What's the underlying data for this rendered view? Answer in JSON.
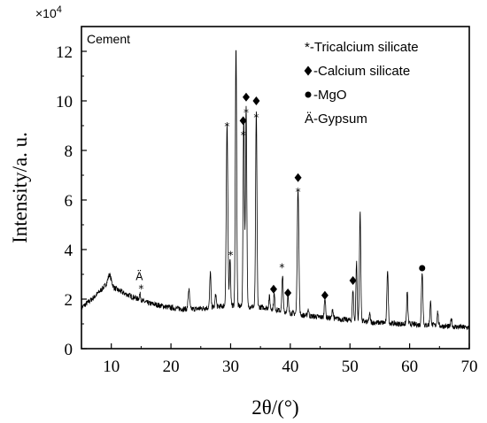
{
  "chart_data": {
    "type": "line",
    "title": "",
    "sample_label": "Cement",
    "xlabel": "2θ/(°)",
    "ylabel": "Intensity/a. u.",
    "y_multiplier": "×10",
    "y_multiplier_exp": "4",
    "xlim": [
      5,
      70
    ],
    "ylim": [
      0,
      13
    ],
    "x_ticks": [
      10,
      20,
      30,
      40,
      50,
      60,
      70
    ],
    "y_ticks": [
      0,
      2,
      4,
      6,
      8,
      10,
      12
    ],
    "grid": false,
    "legend_position": "top-right",
    "legend": [
      {
        "symbol": "star",
        "label": "*-Tricalcium silicate"
      },
      {
        "symbol": "diamond",
        "label": "-Calcium silicate"
      },
      {
        "symbol": "circle",
        "label": "-MgO"
      },
      {
        "symbol": "text",
        "label": "Ä-Gypsum"
      }
    ],
    "baseline": [
      [
        5,
        1.65
      ],
      [
        6,
        1.85
      ],
      [
        7,
        2.05
      ],
      [
        8,
        2.3
      ],
      [
        9,
        2.55
      ],
      [
        9.7,
        2.8
      ],
      [
        10.5,
        2.45
      ],
      [
        12,
        2.25
      ],
      [
        14,
        2.05
      ],
      [
        16,
        1.85
      ],
      [
        18,
        1.75
      ],
      [
        20,
        1.65
      ],
      [
        22,
        1.6
      ],
      [
        24,
        1.6
      ],
      [
        26,
        1.65
      ],
      [
        28,
        1.7
      ],
      [
        30,
        1.75
      ],
      [
        32,
        1.7
      ],
      [
        34,
        1.7
      ],
      [
        36,
        1.65
      ],
      [
        38,
        1.55
      ],
      [
        40,
        1.45
      ],
      [
        42,
        1.35
      ],
      [
        44,
        1.3
      ],
      [
        46,
        1.25
      ],
      [
        48,
        1.2
      ],
      [
        50,
        1.15
      ],
      [
        52,
        1.1
      ],
      [
        54,
        1.05
      ],
      [
        56,
        1.05
      ],
      [
        58,
        1.0
      ],
      [
        60,
        1.0
      ],
      [
        62,
        0.95
      ],
      [
        64,
        0.95
      ],
      [
        66,
        0.9
      ],
      [
        68,
        0.88
      ],
      [
        70,
        0.85
      ]
    ],
    "peaks": [
      [
        9.7,
        3.0,
        0.25
      ],
      [
        11.7,
        2.3,
        0.12
      ],
      [
        14.8,
        2.2,
        0.12
      ],
      [
        23.0,
        2.4,
        0.12
      ],
      [
        26.6,
        3.1,
        0.1
      ],
      [
        27.5,
        2.2,
        0.1
      ],
      [
        29.4,
        9.0,
        0.13
      ],
      [
        29.9,
        3.7,
        0.1
      ],
      [
        30.9,
        12.3,
        0.11
      ],
      [
        32.2,
        9.4,
        0.11
      ],
      [
        32.6,
        9.8,
        0.11
      ],
      [
        34.3,
        9.6,
        0.11
      ],
      [
        36.5,
        2.1,
        0.1
      ],
      [
        37.3,
        2.2,
        0.1
      ],
      [
        38.7,
        3.0,
        0.1
      ],
      [
        39.6,
        2.1,
        0.1
      ],
      [
        41.3,
        6.5,
        0.13
      ],
      [
        43.0,
        1.6,
        0.1
      ],
      [
        45.8,
        2.1,
        0.1
      ],
      [
        47.1,
        1.6,
        0.1
      ],
      [
        50.5,
        2.4,
        0.1
      ],
      [
        51.1,
        3.5,
        0.1
      ],
      [
        51.7,
        5.5,
        0.11
      ],
      [
        53.3,
        1.4,
        0.1
      ],
      [
        56.3,
        3.2,
        0.11
      ],
      [
        59.6,
        2.3,
        0.1
      ],
      [
        62.1,
        3.1,
        0.12
      ],
      [
        63.5,
        1.9,
        0.1
      ],
      [
        64.7,
        1.5,
        0.1
      ],
      [
        67.0,
        1.2,
        0.1
      ]
    ],
    "annotations": [
      {
        "symbol": "star",
        "x": 15.0,
        "y": 2.45
      },
      {
        "symbol": "text",
        "text": "Ä",
        "x": 14.7,
        "y": 2.95
      },
      {
        "symbol": "star",
        "x": 29.4,
        "y": 9.0
      },
      {
        "symbol": "star",
        "x": 30.0,
        "y": 3.8
      },
      {
        "symbol": "star",
        "x": 32.1,
        "y": 8.65
      },
      {
        "symbol": "diamond",
        "x": 32.1,
        "y": 9.2
      },
      {
        "symbol": "star",
        "x": 32.6,
        "y": 9.55
      },
      {
        "symbol": "diamond",
        "x": 32.6,
        "y": 10.15
      },
      {
        "symbol": "star",
        "x": 34.3,
        "y": 9.35
      },
      {
        "symbol": "diamond",
        "x": 34.3,
        "y": 10.0
      },
      {
        "symbol": "diamond",
        "x": 37.2,
        "y": 2.4
      },
      {
        "symbol": "star",
        "x": 38.6,
        "y": 3.3
      },
      {
        "symbol": "diamond",
        "x": 39.6,
        "y": 2.25
      },
      {
        "symbol": "star",
        "x": 41.3,
        "y": 6.35
      },
      {
        "symbol": "diamond",
        "x": 41.3,
        "y": 6.9
      },
      {
        "symbol": "diamond",
        "x": 45.8,
        "y": 2.15
      },
      {
        "symbol": "diamond",
        "x": 50.5,
        "y": 2.75
      },
      {
        "symbol": "circle",
        "x": 62.1,
        "y": 3.25
      }
    ]
  }
}
